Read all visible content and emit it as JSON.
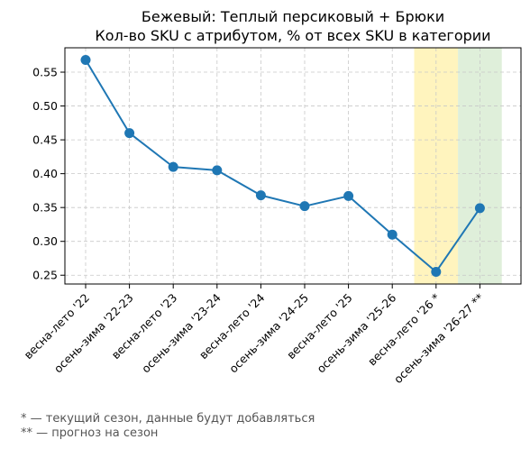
{
  "chart_data": {
    "type": "line",
    "title": "Бежевый: Теплый персиковый + Брюки",
    "subtitle": "Кол-во SKU с атрибутом, % от всех SKU в категории",
    "categories": [
      "весна-лето '22",
      "осень-зима '22-23",
      "весна-лето '23",
      "осень-зима '23-24",
      "весна-лето '24",
      "осень-зима '24-25",
      "весна-лето '25",
      "осень-зима '25-26",
      "весна-лето '26 *",
      "осень-зима '26-27 **"
    ],
    "series": [
      {
        "values": [
          0.568,
          0.46,
          0.41,
          0.405,
          0.368,
          0.352,
          0.367,
          0.31,
          0.255,
          0.349
        ]
      }
    ],
    "ylim": [
      0.237,
      0.586
    ],
    "yticks": [
      0.25,
      0.3,
      0.35,
      0.4,
      0.45,
      0.5,
      0.55
    ],
    "ytick_labels": [
      "0.25",
      "0.30",
      "0.35",
      "0.40",
      "0.45",
      "0.50",
      "0.55"
    ],
    "grid": true,
    "line_color": "#1f77b4",
    "highlights": [
      {
        "category_index": 8,
        "color": "#fff2b3",
        "meaning": "current season"
      },
      {
        "category_index": 9,
        "color": "#d9ecd4",
        "meaning": "forecast"
      }
    ]
  },
  "footnotes": {
    "current": "* — текущий сезон, данные будут добавляться",
    "forecast": "** — прогноз на сезон"
  }
}
